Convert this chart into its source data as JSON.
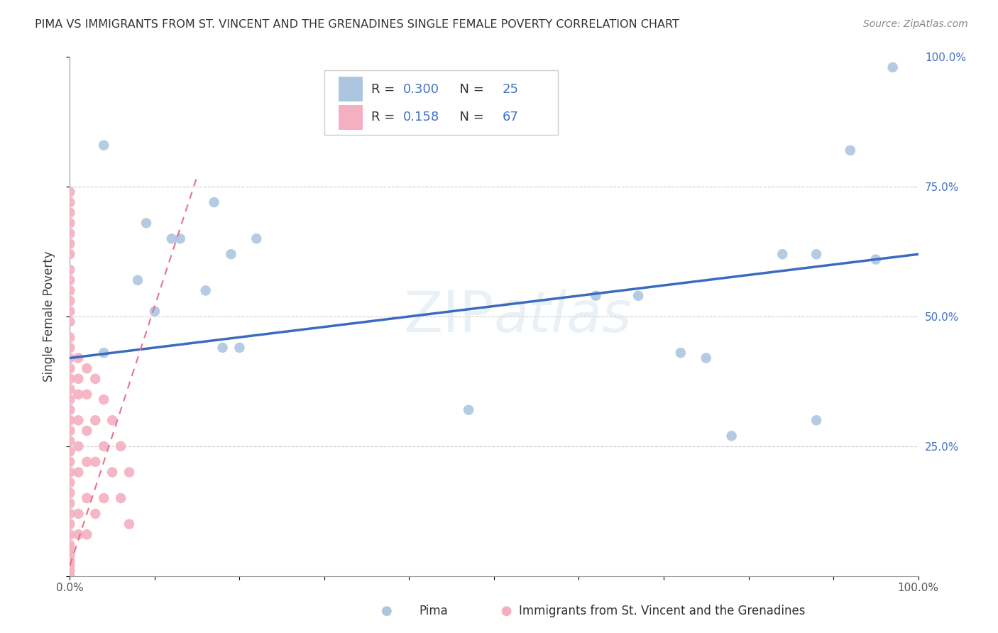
{
  "title": "PIMA VS IMMIGRANTS FROM ST. VINCENT AND THE GRENADINES SINGLE FEMALE POVERTY CORRELATION CHART",
  "source": "Source: ZipAtlas.com",
  "ylabel": "Single Female Poverty",
  "xlim": [
    0,
    1
  ],
  "ylim": [
    0,
    1
  ],
  "yticks": [
    0,
    0.25,
    0.5,
    0.75,
    1.0
  ],
  "ytick_labels": [
    "",
    "25.0%",
    "50.0%",
    "75.0%",
    "100.0%"
  ],
  "xticks": [
    0,
    0.1,
    0.2,
    0.3,
    0.4,
    0.5,
    0.6,
    0.7,
    0.8,
    0.9,
    1.0
  ],
  "xtick_labels": [
    "0.0%",
    "",
    "",
    "",
    "",
    "",
    "",
    "",
    "",
    "",
    "100.0%"
  ],
  "watermark": "ZIPatlas",
  "blue_R": 0.3,
  "blue_N": 25,
  "pink_R": 0.158,
  "pink_N": 67,
  "blue_color": "#adc6e0",
  "pink_color": "#f4b0c0",
  "blue_line_color": "#3a6bbf",
  "pink_line_color": "#e87090",
  "title_color": "#404040",
  "blue_x": [
    0.04,
    0.09,
    0.12,
    0.17,
    0.19,
    0.22,
    0.47,
    0.62,
    0.67,
    0.72,
    0.75,
    0.78,
    0.84,
    0.88,
    0.88,
    0.92,
    0.95,
    0.97
  ],
  "blue_y": [
    0.83,
    0.68,
    0.65,
    0.72,
    0.62,
    0.65,
    0.32,
    0.54,
    0.54,
    0.43,
    0.42,
    0.27,
    0.62,
    0.3,
    0.62,
    0.82,
    0.61,
    0.98
  ],
  "blue_x2": [
    0.04,
    0.08,
    0.1,
    0.13,
    0.16,
    0.18,
    0.2
  ],
  "blue_y2": [
    0.43,
    0.57,
    0.51,
    0.65,
    0.55,
    0.44,
    0.44
  ],
  "pink_x": [
    0.0,
    0.0,
    0.0,
    0.0,
    0.0,
    0.0,
    0.0,
    0.0,
    0.0,
    0.0,
    0.0,
    0.0,
    0.0,
    0.0,
    0.0,
    0.0,
    0.0,
    0.0,
    0.0,
    0.0,
    0.0,
    0.0,
    0.0,
    0.0,
    0.0,
    0.0,
    0.0,
    0.0,
    0.0,
    0.0,
    0.0,
    0.0,
    0.0,
    0.0,
    0.0,
    0.0,
    0.0,
    0.0,
    0.0,
    0.0,
    0.01,
    0.01,
    0.01,
    0.01,
    0.01,
    0.01,
    0.01,
    0.01,
    0.02,
    0.02,
    0.02,
    0.02,
    0.02,
    0.02,
    0.03,
    0.03,
    0.03,
    0.03,
    0.04,
    0.04,
    0.04,
    0.05,
    0.05,
    0.06,
    0.06,
    0.07,
    0.07
  ],
  "pink_y": [
    0.49,
    0.46,
    0.44,
    0.42,
    0.4,
    0.38,
    0.36,
    0.34,
    0.32,
    0.3,
    0.28,
    0.26,
    0.24,
    0.22,
    0.2,
    0.18,
    0.16,
    0.14,
    0.12,
    0.1,
    0.08,
    0.06,
    0.05,
    0.04,
    0.03,
    0.02,
    0.01,
    0.0,
    0.51,
    0.53,
    0.55,
    0.57,
    0.59,
    0.62,
    0.64,
    0.66,
    0.68,
    0.7,
    0.72,
    0.74,
    0.42,
    0.38,
    0.35,
    0.3,
    0.25,
    0.2,
    0.12,
    0.08,
    0.4,
    0.35,
    0.28,
    0.22,
    0.15,
    0.08,
    0.38,
    0.3,
    0.22,
    0.12,
    0.34,
    0.25,
    0.15,
    0.3,
    0.2,
    0.25,
    0.15,
    0.2,
    0.1
  ]
}
